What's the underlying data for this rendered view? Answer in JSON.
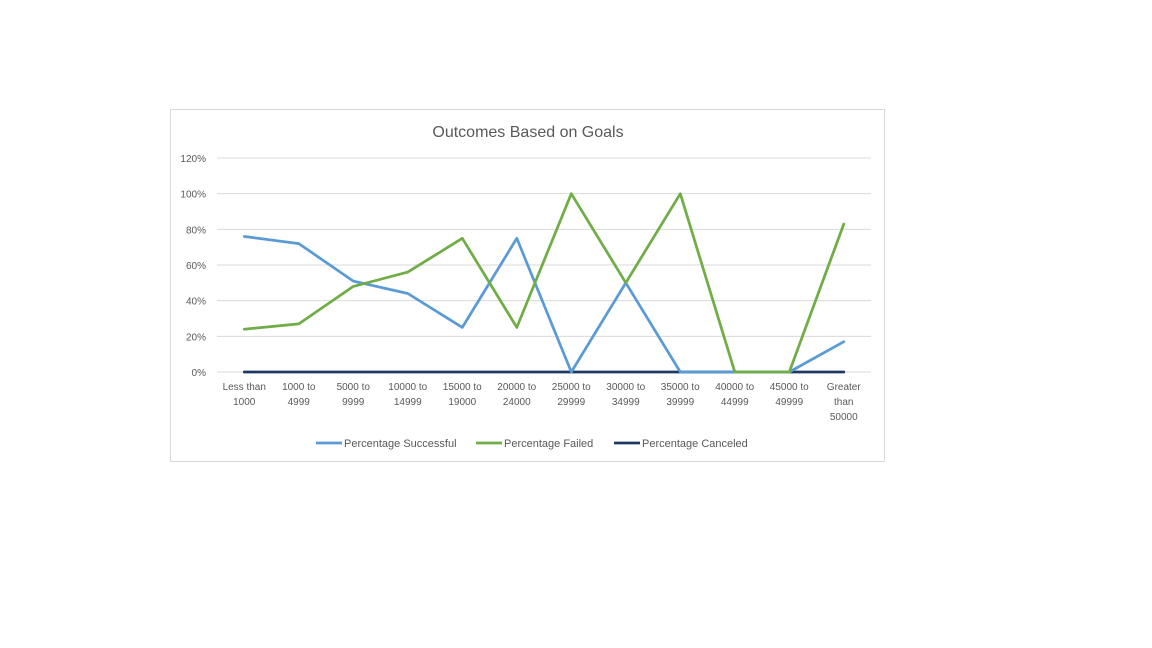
{
  "chart_data": {
    "type": "line",
    "title": "Outcomes Based on Goals",
    "xlabel": "",
    "ylabel": "",
    "ylim": [
      0,
      120
    ],
    "y_ticks": [
      "0%",
      "20%",
      "40%",
      "60%",
      "80%",
      "100%",
      "120%"
    ],
    "y_tick_values": [
      0,
      20,
      40,
      60,
      80,
      100,
      120
    ],
    "categories": [
      [
        "Less than",
        "1000"
      ],
      [
        "1000 to",
        "4999"
      ],
      [
        "5000 to",
        "9999"
      ],
      [
        "10000 to",
        "14999"
      ],
      [
        "15000 to",
        "19000"
      ],
      [
        "20000 to",
        "24000"
      ],
      [
        "25000 to",
        "29999"
      ],
      [
        "30000 to",
        "34999"
      ],
      [
        "35000 to",
        "39999"
      ],
      [
        "40000 to",
        "44999"
      ],
      [
        "45000 to",
        "49999"
      ],
      [
        "Greater",
        "than",
        "50000"
      ]
    ],
    "series": [
      {
        "name": "Percentage Successful",
        "color": "#5b9bd5",
        "values": [
          76,
          72,
          51,
          44,
          25,
          75,
          0,
          50,
          0,
          0,
          0,
          17
        ]
      },
      {
        "name": "Percentage Failed",
        "color": "#70ad47",
        "values": [
          24,
          27,
          48,
          56,
          75,
          25,
          100,
          50,
          100,
          0,
          0,
          83
        ]
      },
      {
        "name": "Percentage Canceled",
        "color": "#203864",
        "values": [
          0,
          0,
          0,
          0,
          0,
          0,
          0,
          0,
          0,
          0,
          0,
          0
        ]
      }
    ],
    "grid": true,
    "legend_position": "bottom"
  }
}
